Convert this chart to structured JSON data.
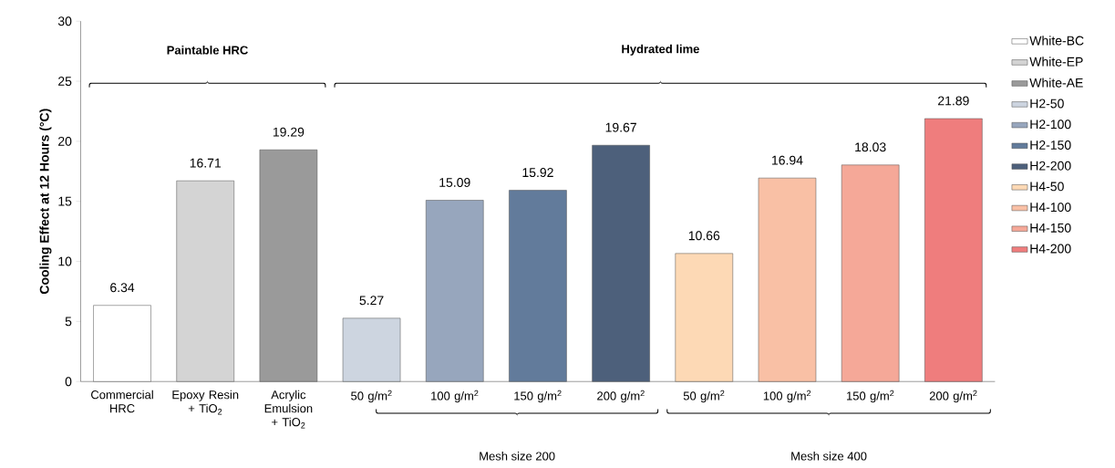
{
  "chart_data": {
    "type": "bar",
    "ylabel": "Cooling Effect at 12 Hours (°C)",
    "categories": [
      "Commercial HRC",
      "Epoxy Resin + TiO$_{2}$",
      "Acrylic Emulsion + TiO$_{2}$",
      "50 g/m$^{2}$",
      "100 g/m$^{2}$",
      "150 g/m$^{2}$",
      "200 g/m$^{2}$",
      "50 g/m$^{2}$",
      "100 g/m$^{2}$",
      "150 g/m$^{2}$",
      "200 g/m$^{2}$"
    ],
    "series": [
      {
        "name": "White-BC",
        "color": "#ffffff",
        "values": [
          6.34,
          null,
          null,
          null,
          null,
          null,
          null,
          null,
          null,
          null,
          null
        ]
      },
      {
        "name": "White-EP",
        "color": "#d4d4d4",
        "values": [
          null,
          16.71,
          null,
          null,
          null,
          null,
          null,
          null,
          null,
          null,
          null
        ]
      },
      {
        "name": "White-AE",
        "color": "#9a9a9a",
        "values": [
          null,
          null,
          19.29,
          null,
          null,
          null,
          null,
          null,
          null,
          null,
          null
        ]
      },
      {
        "name": "H2-50",
        "color": "#cdd5e0",
        "values": [
          null,
          null,
          null,
          5.27,
          null,
          null,
          null,
          null,
          null,
          null,
          null
        ]
      },
      {
        "name": "H2-100",
        "color": "#97a6bd",
        "values": [
          null,
          null,
          null,
          null,
          15.09,
          null,
          null,
          null,
          null,
          null,
          null
        ]
      },
      {
        "name": "H2-150",
        "color": "#627b9b",
        "values": [
          null,
          null,
          null,
          null,
          null,
          15.92,
          null,
          null,
          null,
          null,
          null
        ]
      },
      {
        "name": "H2-200",
        "color": "#4d607b",
        "values": [
          null,
          null,
          null,
          null,
          null,
          null,
          19.67,
          null,
          null,
          null,
          null
        ]
      },
      {
        "name": "H4-50",
        "color": "#fdd9b5",
        "values": [
          null,
          null,
          null,
          null,
          null,
          null,
          null,
          10.66,
          null,
          null,
          null
        ]
      },
      {
        "name": "H4-100",
        "color": "#f9c0a5",
        "values": [
          null,
          null,
          null,
          null,
          null,
          null,
          null,
          null,
          16.94,
          null,
          null
        ]
      },
      {
        "name": "H4-150",
        "color": "#f5a898",
        "values": [
          null,
          null,
          null,
          null,
          null,
          null,
          null,
          null,
          null,
          18.03,
          null
        ]
      },
      {
        "name": "H4-200",
        "color": "#ef7d7d",
        "values": [
          null,
          null,
          null,
          null,
          null,
          null,
          null,
          null,
          null,
          null,
          21.89
        ]
      }
    ],
    "ylim": [
      0,
      30
    ],
    "yticks": [
      0,
      5,
      10,
      15,
      20,
      25,
      30
    ],
    "grid": false,
    "legend": "right",
    "data_labels": true,
    "annotations": [
      "Paintable HRC",
      "Hydrated lime",
      "Mesh size 200",
      "Mesh size 400"
    ]
  }
}
